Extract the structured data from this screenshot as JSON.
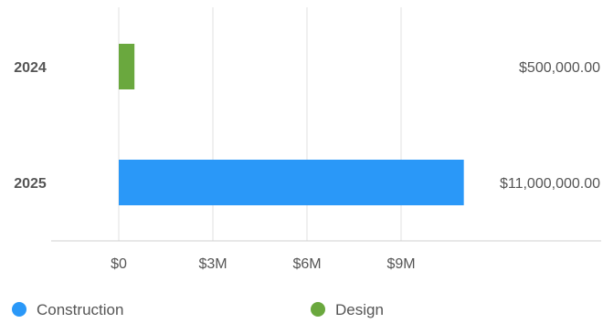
{
  "chart_data": {
    "type": "bar",
    "orientation": "horizontal",
    "stacked": true,
    "categories": [
      "2024",
      "2025"
    ],
    "series": [
      {
        "name": "Construction",
        "color": "#2a98f8",
        "values": [
          0,
          11000000
        ]
      },
      {
        "name": "Design",
        "color": "#6aa83e",
        "values": [
          500000,
          0
        ]
      }
    ],
    "totals_labels": [
      "$500,000.00",
      "$11,000,000.00"
    ],
    "x_ticks": [
      {
        "value": 0,
        "label": "$0"
      },
      {
        "value": 3000000,
        "label": "$3M"
      },
      {
        "value": 6000000,
        "label": "$6M"
      },
      {
        "value": 9000000,
        "label": "$9M"
      }
    ],
    "xlim": [
      0,
      15000000
    ],
    "grid": true,
    "legend_position": "bottom"
  }
}
